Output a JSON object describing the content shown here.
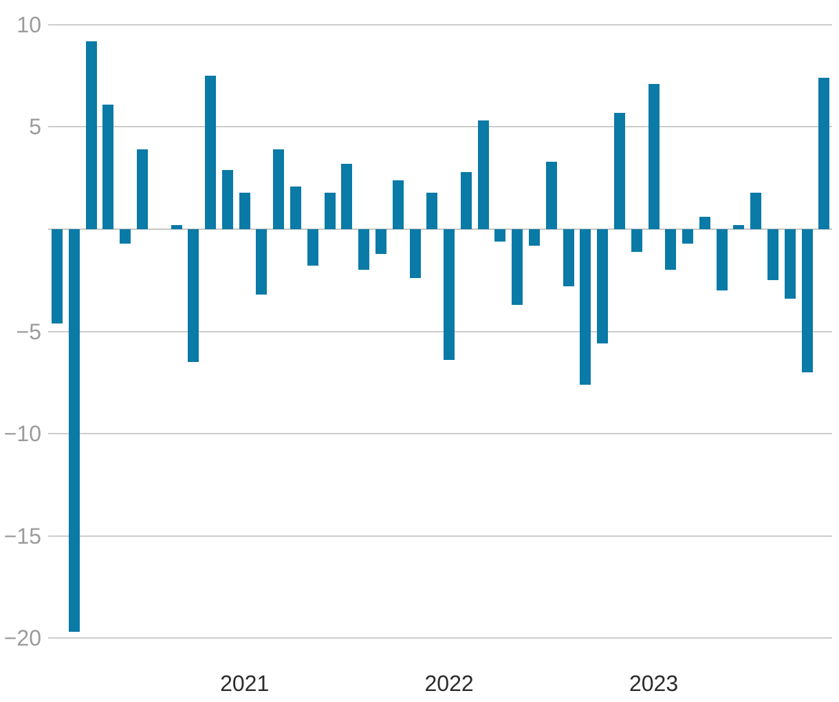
{
  "chart_data": {
    "type": "bar",
    "title": "",
    "description": "Monthly bar chart of percentage change, spanning early 2020 to late 2023",
    "values": [
      -4.6,
      -19.7,
      9.2,
      6.1,
      -0.7,
      3.9,
      0,
      0.2,
      -6.5,
      7.5,
      2.9,
      1.8,
      -3.2,
      3.9,
      2.1,
      -1.8,
      1.8,
      3.2,
      -2.0,
      -1.2,
      2.4,
      -2.4,
      1.8,
      -6.4,
      2.8,
      5.3,
      -0.6,
      -3.7,
      -0.8,
      3.3,
      -2.8,
      -7.6,
      -5.6,
      5.7,
      -1.1,
      7.1,
      -2.0,
      -0.7,
      0.6,
      -3.0,
      0.2,
      1.8,
      -2.5,
      -3.4,
      -7.0,
      7.4
    ],
    "bar_count": 46,
    "year_ticks": [
      {
        "label": "2021",
        "bar_index": 11
      },
      {
        "label": "2022",
        "bar_index": 23
      },
      {
        "label": "2023",
        "bar_index": 35
      }
    ],
    "y_tick_labels": [
      {
        "label": "10",
        "value": 10
      },
      {
        "label": "5",
        "value": 5
      },
      {
        "label": "−5",
        "value": -5
      },
      {
        "label": "−10",
        "value": -10
      },
      {
        "label": "−15",
        "value": -15
      },
      {
        "label": "−20",
        "value": -20
      }
    ],
    "gridline_values": [
      10,
      5,
      0,
      -5,
      -10,
      -15,
      -20
    ],
    "ylim": [
      -20.5,
      10.5
    ],
    "grid": "horizontal",
    "legend": "none",
    "colors": {
      "bar": "#0a7aa6",
      "gridline": "#cccccc",
      "zero_line": "#c6c6c6",
      "y_tick_label": "#9b9b9b",
      "x_year_label": "#2b2b2b",
      "background": "#ffffff"
    }
  }
}
